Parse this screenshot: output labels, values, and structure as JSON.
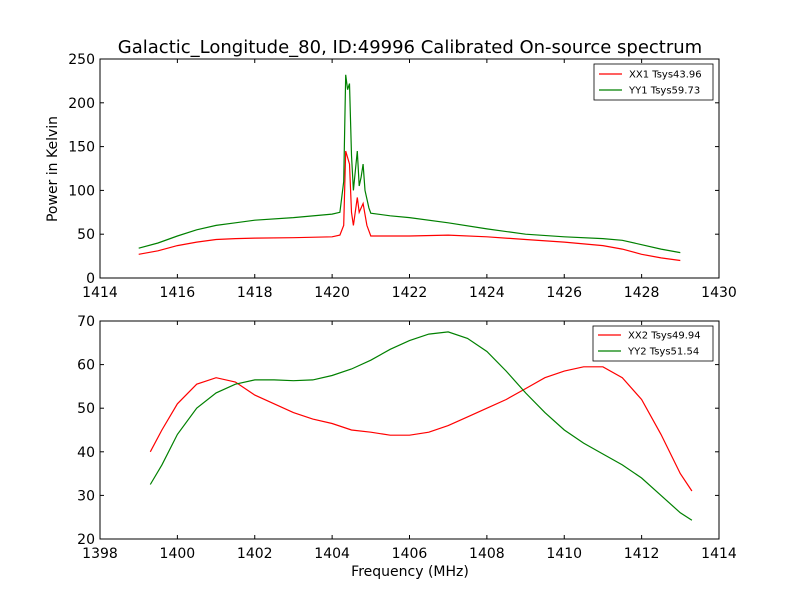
{
  "chart_data": [
    {
      "type": "line",
      "title": "Galactic_Longitude_80, ID:49996 Calibrated On-source spectrum",
      "xlabel": "",
      "ylabel": "Power in Kelvin",
      "xlim": [
        1414,
        1430
      ],
      "ylim": [
        0,
        250
      ],
      "xticks": [
        1414,
        1416,
        1418,
        1420,
        1422,
        1424,
        1426,
        1428,
        1430
      ],
      "yticks": [
        0,
        50,
        100,
        150,
        200,
        250
      ],
      "grid": false,
      "legend_position": "top-right",
      "series": [
        {
          "name": "XX1 Tsys43.96",
          "color": "#ff0000",
          "points": [
            [
              1415.0,
              27
            ],
            [
              1415.5,
              31
            ],
            [
              1416.0,
              37
            ],
            [
              1416.5,
              41
            ],
            [
              1417.0,
              44
            ],
            [
              1417.5,
              45
            ],
            [
              1418.0,
              45.5
            ],
            [
              1419.0,
              46
            ],
            [
              1420.0,
              47
            ],
            [
              1420.2,
              49
            ],
            [
              1420.3,
              60
            ],
            [
              1420.35,
              145
            ],
            [
              1420.45,
              130
            ],
            [
              1420.5,
              75
            ],
            [
              1420.55,
              60
            ],
            [
              1420.65,
              92
            ],
            [
              1420.7,
              75
            ],
            [
              1420.8,
              85
            ],
            [
              1420.9,
              60
            ],
            [
              1421.0,
              48
            ],
            [
              1421.5,
              48
            ],
            [
              1422.0,
              48
            ],
            [
              1423.0,
              49
            ],
            [
              1424.0,
              47
            ],
            [
              1425.0,
              44
            ],
            [
              1426.0,
              41
            ],
            [
              1427.0,
              37
            ],
            [
              1427.5,
              33
            ],
            [
              1428.0,
              27
            ],
            [
              1428.5,
              23
            ],
            [
              1429.0,
              20
            ]
          ]
        },
        {
          "name": "YY1 Tsys59.73",
          "color": "#008000",
          "points": [
            [
              1415.0,
              34
            ],
            [
              1415.5,
              40
            ],
            [
              1416.0,
              48
            ],
            [
              1416.5,
              55
            ],
            [
              1417.0,
              60
            ],
            [
              1417.5,
              63
            ],
            [
              1418.0,
              66
            ],
            [
              1419.0,
              69
            ],
            [
              1420.0,
              73
            ],
            [
              1420.2,
              75
            ],
            [
              1420.3,
              110
            ],
            [
              1420.35,
              232
            ],
            [
              1420.4,
              215
            ],
            [
              1420.45,
              222
            ],
            [
              1420.5,
              140
            ],
            [
              1420.55,
              100
            ],
            [
              1420.65,
              145
            ],
            [
              1420.7,
              105
            ],
            [
              1420.75,
              115
            ],
            [
              1420.8,
              130
            ],
            [
              1420.85,
              100
            ],
            [
              1420.95,
              80
            ],
            [
              1421.0,
              74
            ],
            [
              1421.5,
              71
            ],
            [
              1422.0,
              69
            ],
            [
              1423.0,
              63
            ],
            [
              1424.0,
              56
            ],
            [
              1425.0,
              50
            ],
            [
              1426.0,
              47
            ],
            [
              1427.0,
              45
            ],
            [
              1427.5,
              43
            ],
            [
              1428.0,
              38
            ],
            [
              1428.5,
              33
            ],
            [
              1429.0,
              29
            ]
          ]
        }
      ]
    },
    {
      "type": "line",
      "title": "",
      "xlabel": "Frequency (MHz)",
      "ylabel": "",
      "xlim": [
        1398,
        1414
      ],
      "ylim": [
        20,
        70
      ],
      "xticks": [
        1398,
        1400,
        1402,
        1404,
        1406,
        1408,
        1410,
        1412,
        1414
      ],
      "yticks": [
        20,
        30,
        40,
        50,
        60,
        70
      ],
      "grid": false,
      "legend_position": "top-right",
      "series": [
        {
          "name": "XX2 Tsys49.94",
          "color": "#ff0000",
          "points": [
            [
              1399.3,
              40
            ],
            [
              1399.6,
              45
            ],
            [
              1400.0,
              51
            ],
            [
              1400.5,
              55.5
            ],
            [
              1401.0,
              57
            ],
            [
              1401.5,
              56
            ],
            [
              1402.0,
              53
            ],
            [
              1402.5,
              51
            ],
            [
              1403.0,
              49
            ],
            [
              1403.5,
              47.5
            ],
            [
              1404.0,
              46.5
            ],
            [
              1404.5,
              45
            ],
            [
              1405.0,
              44.5
            ],
            [
              1405.5,
              43.8
            ],
            [
              1406.0,
              43.8
            ],
            [
              1406.5,
              44.5
            ],
            [
              1407.0,
              46
            ],
            [
              1407.5,
              48
            ],
            [
              1408.0,
              50
            ],
            [
              1408.5,
              52
            ],
            [
              1409.0,
              54.5
            ],
            [
              1409.5,
              57
            ],
            [
              1410.0,
              58.5
            ],
            [
              1410.5,
              59.5
            ],
            [
              1411.0,
              59.5
            ],
            [
              1411.5,
              57
            ],
            [
              1412.0,
              52
            ],
            [
              1412.5,
              44
            ],
            [
              1413.0,
              35
            ],
            [
              1413.3,
              31
            ]
          ]
        },
        {
          "name": "YY2 Tsys51.54",
          "color": "#008000",
          "points": [
            [
              1399.3,
              32.5
            ],
            [
              1399.6,
              37
            ],
            [
              1400.0,
              44
            ],
            [
              1400.5,
              50
            ],
            [
              1401.0,
              53.5
            ],
            [
              1401.5,
              55.5
            ],
            [
              1402.0,
              56.5
            ],
            [
              1402.5,
              56.5
            ],
            [
              1403.0,
              56.3
            ],
            [
              1403.5,
              56.5
            ],
            [
              1404.0,
              57.5
            ],
            [
              1404.5,
              59
            ],
            [
              1405.0,
              61
            ],
            [
              1405.5,
              63.5
            ],
            [
              1406.0,
              65.5
            ],
            [
              1406.5,
              67
            ],
            [
              1407.0,
              67.5
            ],
            [
              1407.5,
              66
            ],
            [
              1408.0,
              63
            ],
            [
              1408.5,
              58.5
            ],
            [
              1409.0,
              53.5
            ],
            [
              1409.5,
              49
            ],
            [
              1410.0,
              45
            ],
            [
              1410.5,
              42
            ],
            [
              1411.0,
              39.5
            ],
            [
              1411.5,
              37
            ],
            [
              1412.0,
              34
            ],
            [
              1412.5,
              30
            ],
            [
              1413.0,
              26
            ],
            [
              1413.3,
              24.3
            ]
          ]
        }
      ]
    }
  ]
}
